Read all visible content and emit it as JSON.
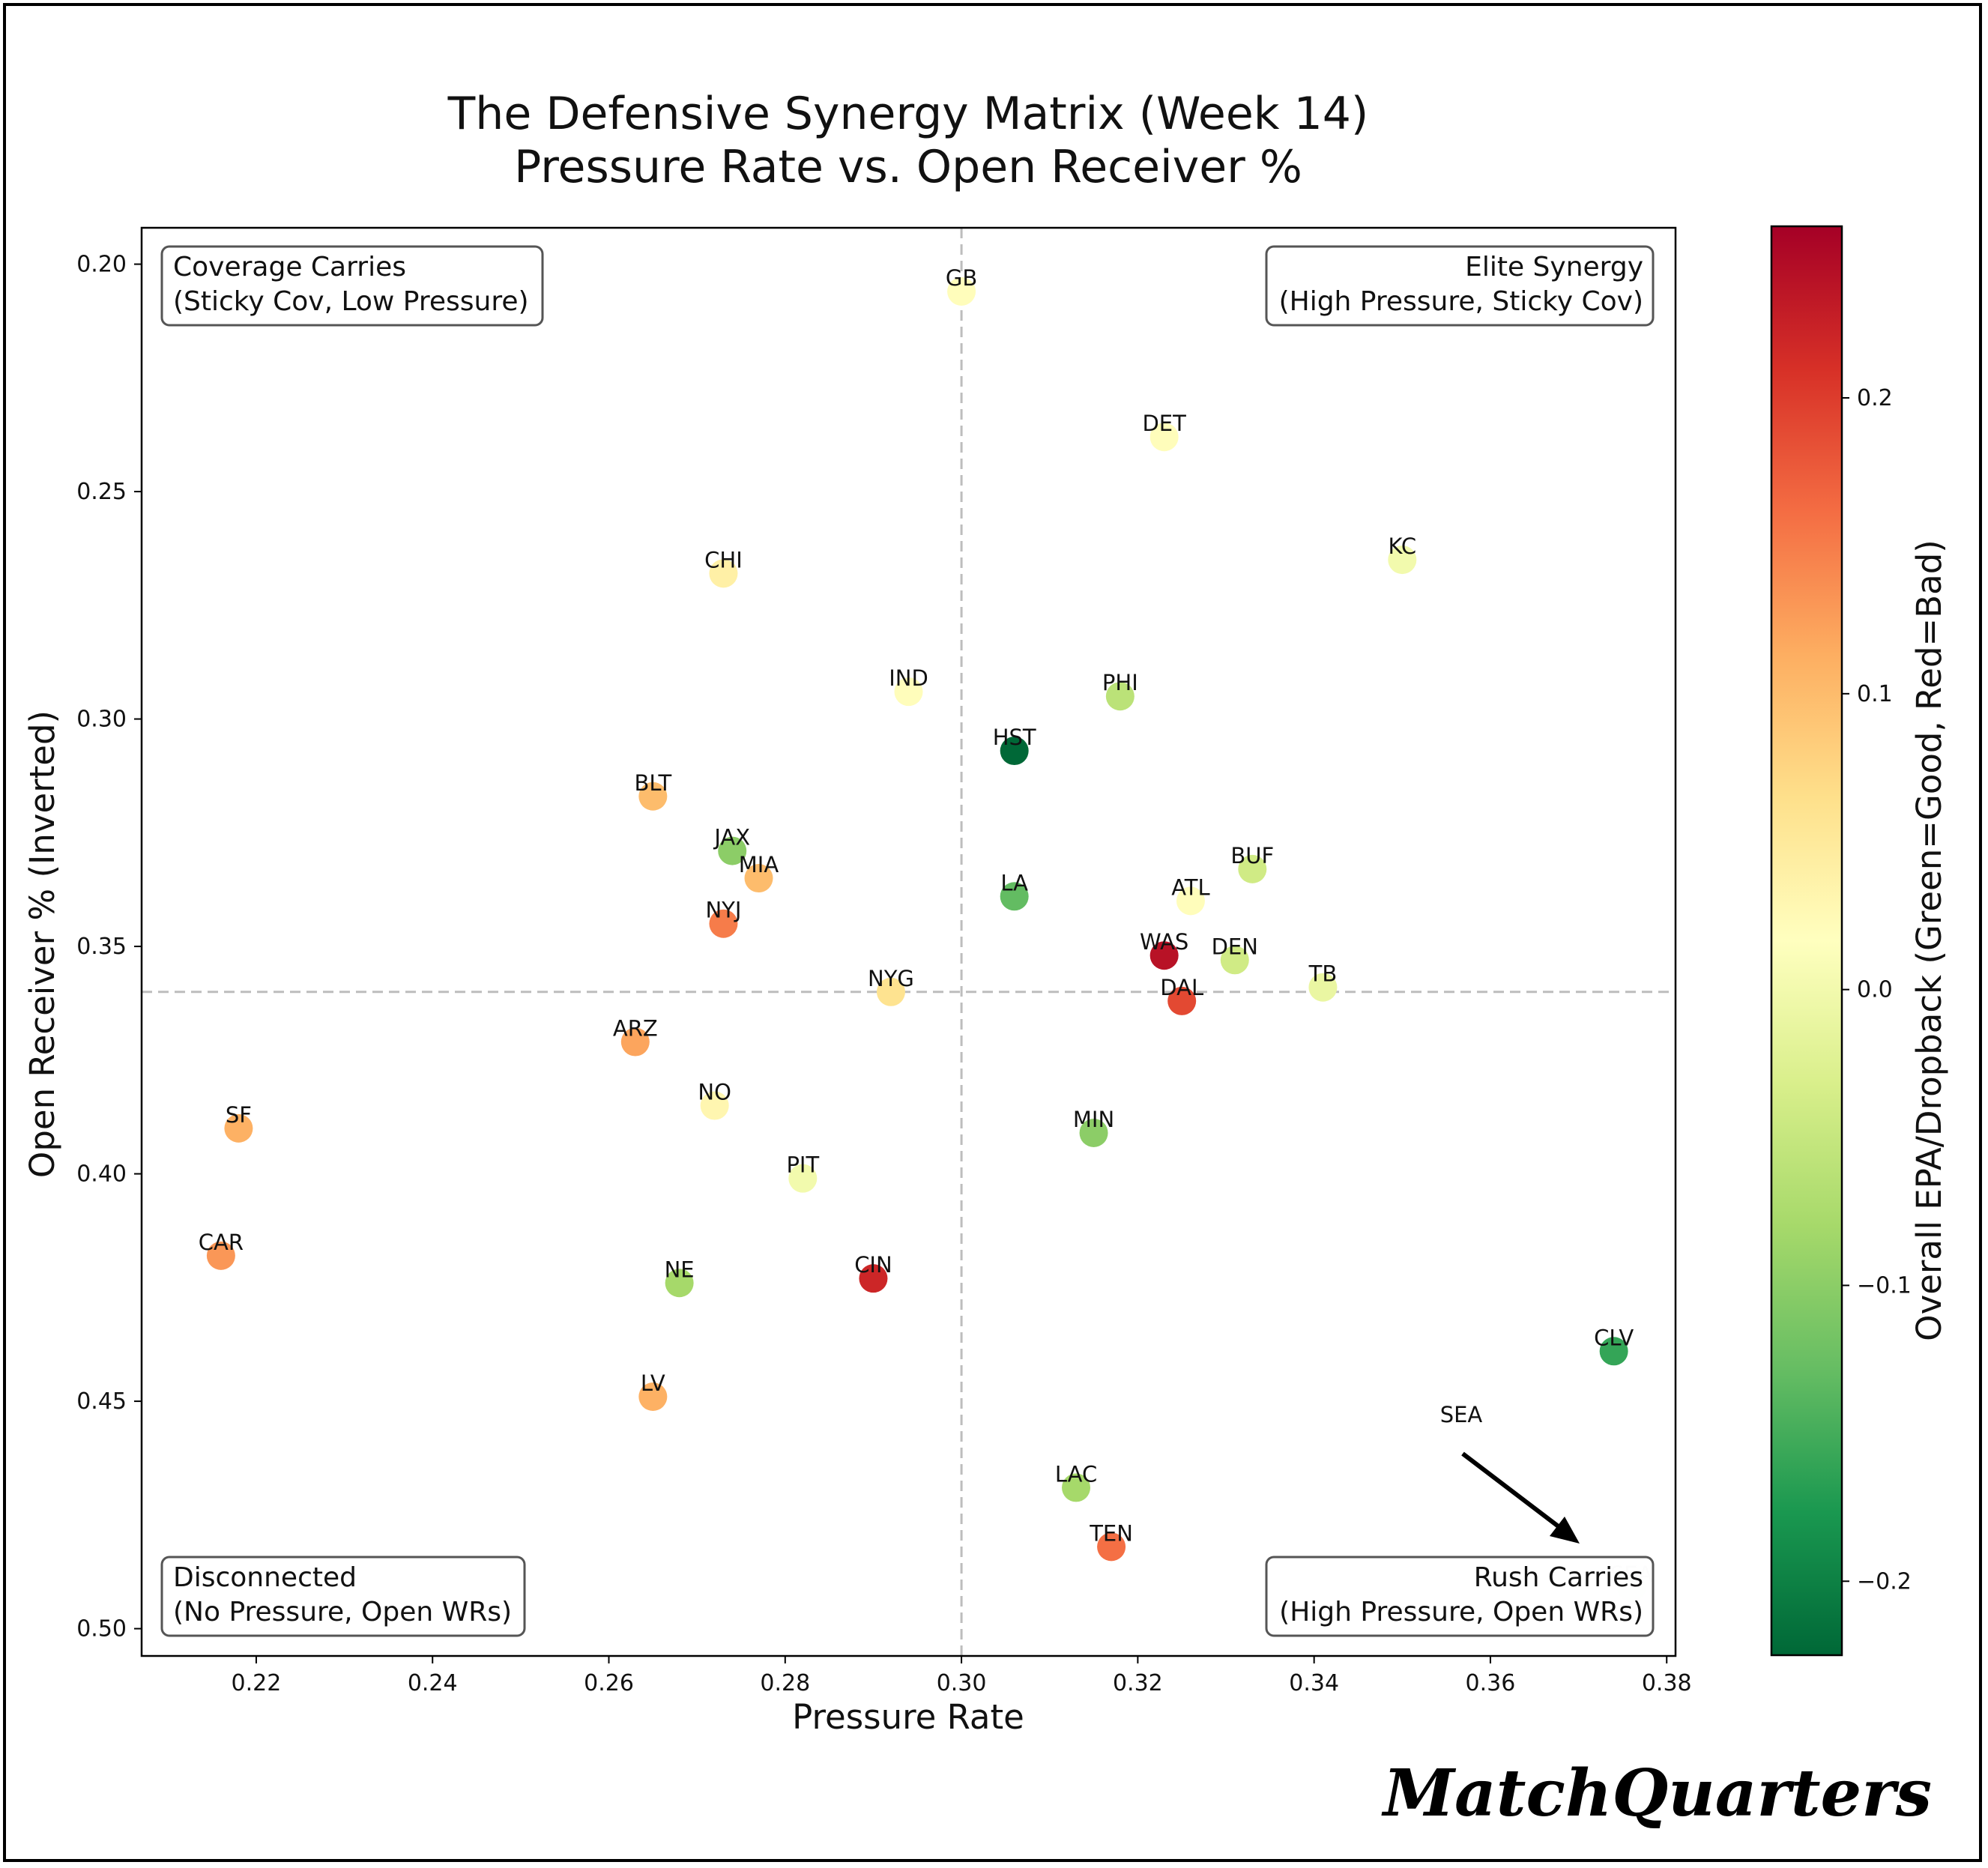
{
  "chart_data": {
    "type": "scatter",
    "title": "The Defensive Synergy Matrix (Week 14)",
    "subtitle": "Pressure Rate vs. Open Receiver %",
    "xlabel": "Pressure Rate",
    "ylabel": "Open Receiver % (Inverted)",
    "xlim": [
      0.207,
      0.381
    ],
    "ylim": [
      0.192,
      0.506
    ],
    "y_inverted": true,
    "xticks": [
      "0.22",
      "0.24",
      "0.26",
      "0.28",
      "0.30",
      "0.32",
      "0.34",
      "0.36",
      "0.38"
    ],
    "yticks": [
      "0.20",
      "0.25",
      "0.30",
      "0.35",
      "0.40",
      "0.45",
      "0.50"
    ],
    "reference_lines": {
      "x": 0.3,
      "y": 0.36
    },
    "colorbar": {
      "label": "Overall EPA/Dropback (Green=Good, Red=Bad)",
      "range": [
        -0.225,
        0.258
      ],
      "ticks": [
        "0.2",
        "0.1",
        "0.0",
        "−0.1",
        "−0.2"
      ],
      "colormap": "RdYlGn_r"
    },
    "quadrants": [
      {
        "line1": "Coverage Carries",
        "line2": "(Sticky Cov, Low Pressure)"
      },
      {
        "line1": "Elite Synergy",
        "line2": "(High Pressure, Sticky Cov)"
      },
      {
        "line1": "Disconnected",
        "line2": "(No Pressure, Open WRs)"
      },
      {
        "line1": "Rush Carries",
        "line2": "(High Pressure, Open WRs)"
      }
    ],
    "annotation": {
      "text": "SEA"
    },
    "points": [
      {
        "team": "GB",
        "x": 0.3,
        "y": 0.206,
        "epa": 0.02
      },
      {
        "team": "DET",
        "x": 0.323,
        "y": 0.238,
        "epa": 0.02
      },
      {
        "team": "KC",
        "x": 0.35,
        "y": 0.265,
        "epa": 0.0
      },
      {
        "team": "CHI",
        "x": 0.273,
        "y": 0.268,
        "epa": 0.04
      },
      {
        "team": "IND",
        "x": 0.294,
        "y": 0.294,
        "epa": 0.02
      },
      {
        "team": "PHI",
        "x": 0.318,
        "y": 0.295,
        "epa": -0.06
      },
      {
        "team": "HST",
        "x": 0.306,
        "y": 0.307,
        "epa": -0.23
      },
      {
        "team": "BLT",
        "x": 0.265,
        "y": 0.317,
        "epa": 0.1
      },
      {
        "team": "JAX",
        "x": 0.274,
        "y": 0.329,
        "epa": -0.1
      },
      {
        "team": "BUF",
        "x": 0.333,
        "y": 0.333,
        "epa": -0.04
      },
      {
        "team": "MIA",
        "x": 0.277,
        "y": 0.335,
        "epa": 0.1
      },
      {
        "team": "LA",
        "x": 0.306,
        "y": 0.339,
        "epa": -0.13
      },
      {
        "team": "ATL",
        "x": 0.326,
        "y": 0.34,
        "epa": 0.02
      },
      {
        "team": "NYJ",
        "x": 0.273,
        "y": 0.345,
        "epa": 0.15
      },
      {
        "team": "WAS",
        "x": 0.323,
        "y": 0.352,
        "epa": 0.24
      },
      {
        "team": "DEN",
        "x": 0.331,
        "y": 0.353,
        "epa": -0.04
      },
      {
        "team": "TB",
        "x": 0.341,
        "y": 0.359,
        "epa": -0.01
      },
      {
        "team": "NYG",
        "x": 0.292,
        "y": 0.36,
        "epa": 0.06
      },
      {
        "team": "DAL",
        "x": 0.325,
        "y": 0.362,
        "epa": 0.19
      },
      {
        "team": "ARZ",
        "x": 0.263,
        "y": 0.371,
        "epa": 0.12
      },
      {
        "team": "NO",
        "x": 0.272,
        "y": 0.385,
        "epa": 0.03
      },
      {
        "team": "SF",
        "x": 0.218,
        "y": 0.39,
        "epa": 0.11
      },
      {
        "team": "MIN",
        "x": 0.315,
        "y": 0.391,
        "epa": -0.1
      },
      {
        "team": "PIT",
        "x": 0.282,
        "y": 0.401,
        "epa": 0.0
      },
      {
        "team": "CAR",
        "x": 0.216,
        "y": 0.418,
        "epa": 0.13
      },
      {
        "team": "CIN",
        "x": 0.29,
        "y": 0.423,
        "epa": 0.22
      },
      {
        "team": "NE",
        "x": 0.268,
        "y": 0.424,
        "epa": -0.08
      },
      {
        "team": "CLV",
        "x": 0.374,
        "y": 0.439,
        "epa": -0.16
      },
      {
        "team": "LV",
        "x": 0.265,
        "y": 0.449,
        "epa": 0.11
      },
      {
        "team": "LAC",
        "x": 0.313,
        "y": 0.469,
        "epa": -0.08
      },
      {
        "team": "TEN",
        "x": 0.317,
        "y": 0.482,
        "epa": 0.16
      },
      {
        "team": "SEA",
        "x": 0.376,
        "y": 0.491,
        "epa": -0.1
      }
    ]
  },
  "branding": {
    "text": "MatchQuarters"
  }
}
